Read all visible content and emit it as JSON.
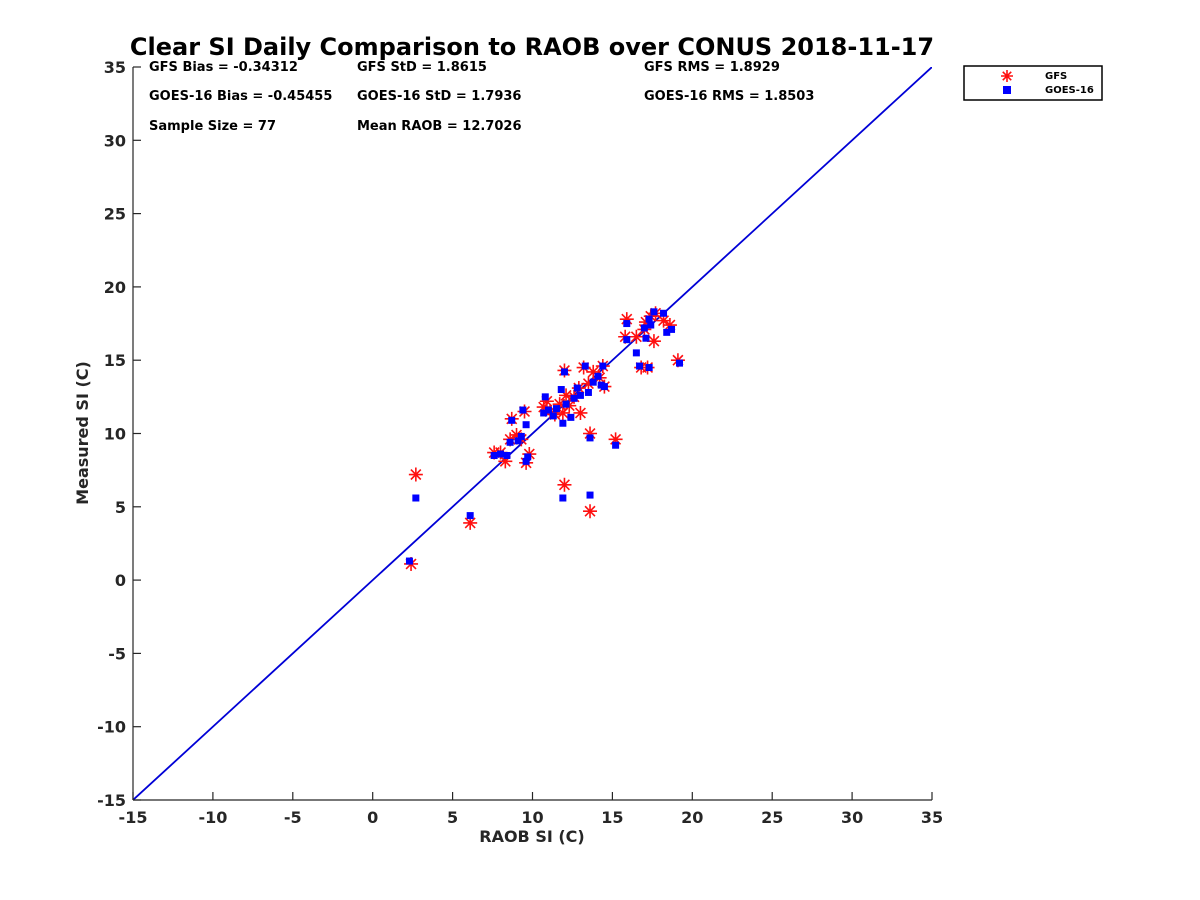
{
  "chart_data": {
    "type": "scatter",
    "title": "Clear SI Daily Comparison to RAOB over CONUS 2018-11-17",
    "xlabel": "RAOB SI (C)",
    "ylabel": "Measured SI (C)",
    "xlim": [
      -15,
      35
    ],
    "ylim": [
      -15,
      35
    ],
    "xticks": [
      -15,
      -10,
      -5,
      0,
      5,
      10,
      15,
      20,
      25,
      30,
      35
    ],
    "yticks": [
      -15,
      -10,
      -5,
      0,
      5,
      10,
      15,
      20,
      25,
      30,
      35
    ],
    "grid": false,
    "legend_position": "outside top-right",
    "reference_line": {
      "type": "one-to-one",
      "from": [
        -15,
        -15
      ],
      "to": [
        35,
        35
      ],
      "color": "#0000d6"
    },
    "stats": [
      [
        "GFS Bias = -0.34312",
        "GFS StD = 1.8615",
        "GFS RMS = 1.8929"
      ],
      [
        "GOES-16 Bias = -0.45455",
        "GOES-16 StD = 1.7936",
        "GOES-16 RMS = 1.8503"
      ],
      [
        "Sample Size = 77",
        "Mean RAOB = 12.7026",
        ""
      ]
    ],
    "series": [
      {
        "name": "GFS",
        "marker": "asterisk",
        "color": "#ff1010",
        "points": [
          [
            2.4,
            1.1
          ],
          [
            2.7,
            7.2
          ],
          [
            6.1,
            3.9
          ],
          [
            7.6,
            8.7
          ],
          [
            8.0,
            8.7
          ],
          [
            8.3,
            8.1
          ],
          [
            8.6,
            9.6
          ],
          [
            8.7,
            11.0
          ],
          [
            9.0,
            9.9
          ],
          [
            9.3,
            9.6
          ],
          [
            9.5,
            11.5
          ],
          [
            9.6,
            8.0
          ],
          [
            9.8,
            8.6
          ],
          [
            10.7,
            11.8
          ],
          [
            10.9,
            12.2
          ],
          [
            11.1,
            11.5
          ],
          [
            11.4,
            11.3
          ],
          [
            11.7,
            12.0
          ],
          [
            11.9,
            11.4
          ],
          [
            12.0,
            14.3
          ],
          [
            12.1,
            12.6
          ],
          [
            12.3,
            11.9
          ],
          [
            12.6,
            12.5
          ],
          [
            12.9,
            13.1
          ],
          [
            13.0,
            11.4
          ],
          [
            13.2,
            14.5
          ],
          [
            13.5,
            13.4
          ],
          [
            13.8,
            14.2
          ],
          [
            14.2,
            13.8
          ],
          [
            14.5,
            13.2
          ],
          [
            14.4,
            14.6
          ],
          [
            12.0,
            6.5
          ],
          [
            13.6,
            10.0
          ],
          [
            13.6,
            4.7
          ],
          [
            15.2,
            9.6
          ],
          [
            15.8,
            16.6
          ],
          [
            15.9,
            17.8
          ],
          [
            16.5,
            16.6
          ],
          [
            16.8,
            14.5
          ],
          [
            17.1,
            17.6
          ],
          [
            17.4,
            18.0
          ],
          [
            17.6,
            16.3
          ],
          [
            17.2,
            14.5
          ],
          [
            17.7,
            18.2
          ],
          [
            18.2,
            17.7
          ],
          [
            18.6,
            17.4
          ],
          [
            19.1,
            15.0
          ],
          [
            17.0,
            17.1
          ]
        ]
      },
      {
        "name": "GOES-16",
        "marker": "square",
        "color": "#0000ff",
        "points": [
          [
            2.3,
            1.3
          ],
          [
            2.7,
            5.6
          ],
          [
            6.1,
            4.4
          ],
          [
            7.6,
            8.5
          ],
          [
            8.0,
            8.6
          ],
          [
            8.4,
            8.5
          ],
          [
            8.6,
            9.4
          ],
          [
            8.7,
            10.9
          ],
          [
            9.1,
            9.5
          ],
          [
            9.3,
            9.8
          ],
          [
            9.4,
            11.6
          ],
          [
            9.6,
            10.6
          ],
          [
            9.6,
            8.1
          ],
          [
            9.7,
            8.4
          ],
          [
            10.7,
            11.4
          ],
          [
            10.8,
            12.5
          ],
          [
            11.0,
            11.6
          ],
          [
            11.3,
            11.2
          ],
          [
            11.5,
            11.7
          ],
          [
            11.8,
            13.0
          ],
          [
            11.9,
            10.7
          ],
          [
            12.0,
            14.2
          ],
          [
            12.1,
            12.0
          ],
          [
            12.4,
            11.1
          ],
          [
            12.6,
            12.4
          ],
          [
            12.8,
            13.1
          ],
          [
            13.0,
            12.6
          ],
          [
            13.3,
            14.6
          ],
          [
            13.5,
            12.8
          ],
          [
            13.8,
            13.5
          ],
          [
            14.1,
            13.9
          ],
          [
            14.3,
            13.3
          ],
          [
            14.4,
            14.6
          ],
          [
            14.5,
            13.2
          ],
          [
            11.9,
            5.6
          ],
          [
            13.6,
            9.7
          ],
          [
            13.6,
            5.8
          ],
          [
            15.2,
            9.2
          ],
          [
            15.9,
            16.4
          ],
          [
            15.9,
            17.5
          ],
          [
            16.5,
            15.5
          ],
          [
            16.7,
            14.6
          ],
          [
            17.0,
            17.2
          ],
          [
            17.3,
            17.8
          ],
          [
            17.4,
            17.4
          ],
          [
            17.6,
            18.3
          ],
          [
            17.3,
            14.5
          ],
          [
            17.1,
            16.5
          ],
          [
            18.2,
            18.2
          ],
          [
            18.4,
            16.9
          ],
          [
            18.7,
            17.1
          ],
          [
            19.2,
            14.8
          ]
        ]
      }
    ]
  }
}
